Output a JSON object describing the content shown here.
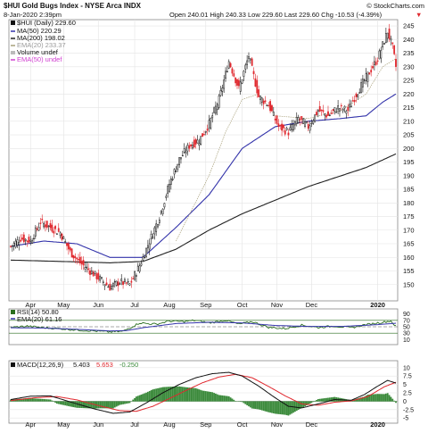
{
  "header": {
    "symbol_line": "$HUI Gold Bugs Index - NYSE Arca  INDX",
    "date_line": "8-Jan-2020 2:39pm",
    "ohlc_line": "Open 240.01  High 240.33  Low 229.60  Last 229.60  Chg -10.53 (-4.39%)",
    "chg_arrow": "▼",
    "watermark": "© StockCharts.com"
  },
  "legend": {
    "price": "$HUI (Daily) 229.60",
    "ma50": "MA(50) 220.29",
    "ma200": "MA(200) 198.02",
    "ema20": "EMA(20) 233.37",
    "volume": "Volume undef",
    "ema50": "EMA(50) undef"
  },
  "rsi_legend": {
    "rsi": "RSI(14) 50.80",
    "ema": "EMA(20) 61.16"
  },
  "macd_legend": {
    "label": "MACD(12,26,9)",
    "macd": "5.403",
    "signal": "5.653",
    "hist": "-0.250"
  },
  "colors": {
    "up": "#111111",
    "down": "#e0282e",
    "ma50": "#3333aa",
    "ma200": "#222222",
    "ema20": "#a8a07a",
    "ema50": "#d040d0",
    "rsi": "#2a6e1e",
    "rsi_fill": "#8cc77a",
    "macd": "#111111",
    "signal": "#e0282e",
    "hist": "#3b8a3b"
  },
  "chart_data": [
    {
      "type": "candlestick",
      "title": "$HUI Gold Bugs Index - NYSE Arca INDX",
      "x_tick_labels": [
        "Apr",
        "May",
        "Jun",
        "Jul",
        "Aug",
        "Sep",
        "Oct",
        "Nov",
        "Dec",
        "2020"
      ],
      "ylim": [
        145,
        246
      ],
      "y_ticks": [
        150,
        155,
        160,
        165,
        170,
        175,
        180,
        185,
        190,
        195,
        200,
        205,
        210,
        215,
        220,
        225,
        230,
        235,
        240,
        245
      ],
      "close_keypoints": [
        [
          0,
          164
        ],
        [
          6,
          167
        ],
        [
          12,
          166
        ],
        [
          18,
          173
        ],
        [
          24,
          171
        ],
        [
          30,
          169
        ],
        [
          36,
          162
        ],
        [
          42,
          158
        ],
        [
          48,
          155
        ],
        [
          54,
          152
        ],
        [
          60,
          149
        ],
        [
          66,
          151
        ],
        [
          72,
          150
        ],
        [
          78,
          157
        ],
        [
          84,
          166
        ],
        [
          90,
          175
        ],
        [
          96,
          187
        ],
        [
          102,
          196
        ],
        [
          108,
          201
        ],
        [
          114,
          203
        ],
        [
          120,
          209
        ],
        [
          126,
          218
        ],
        [
          132,
          232
        ],
        [
          138,
          222
        ],
        [
          144,
          234
        ],
        [
          150,
          219
        ],
        [
          156,
          216
        ],
        [
          162,
          208
        ],
        [
          168,
          206
        ],
        [
          174,
          211
        ],
        [
          180,
          208
        ],
        [
          186,
          214
        ],
        [
          192,
          212
        ],
        [
          198,
          215
        ],
        [
          204,
          214
        ],
        [
          210,
          221
        ],
        [
          216,
          227
        ],
        [
          222,
          233
        ],
        [
          228,
          243
        ],
        [
          231,
          237
        ],
        [
          233,
          230
        ]
      ],
      "ma50": [
        [
          0,
          164
        ],
        [
          20,
          166
        ],
        [
          40,
          165
        ],
        [
          60,
          160
        ],
        [
          80,
          160
        ],
        [
          100,
          171
        ],
        [
          120,
          183
        ],
        [
          140,
          200
        ],
        [
          160,
          208
        ],
        [
          180,
          210
        ],
        [
          200,
          211
        ],
        [
          215,
          212
        ],
        [
          225,
          217
        ],
        [
          233,
          220
        ]
      ],
      "ma200": [
        [
          0,
          159
        ],
        [
          30,
          158.5
        ],
        [
          60,
          158
        ],
        [
          80,
          158.5
        ],
        [
          100,
          163
        ],
        [
          120,
          170
        ],
        [
          140,
          176
        ],
        [
          160,
          181
        ],
        [
          180,
          186
        ],
        [
          200,
          190
        ],
        [
          215,
          193
        ],
        [
          233,
          198
        ]
      ],
      "ema20": [
        [
          100,
          166
        ],
        [
          110,
          178
        ],
        [
          120,
          190
        ],
        [
          130,
          206
        ],
        [
          140,
          218
        ],
        [
          150,
          220
        ],
        [
          160,
          212
        ],
        [
          180,
          211
        ],
        [
          200,
          214
        ],
        [
          215,
          220
        ],
        [
          225,
          230
        ],
        [
          233,
          233
        ]
      ]
    },
    {
      "type": "line",
      "title": "RSI(14)",
      "ylim": [
        0,
        100
      ],
      "y_ticks": [
        10,
        30,
        50,
        70,
        90
      ],
      "guides": [
        30,
        70
      ],
      "rsi_keypoints": [
        [
          0,
          48
        ],
        [
          10,
          52
        ],
        [
          20,
          47
        ],
        [
          30,
          44
        ],
        [
          40,
          40
        ],
        [
          50,
          37
        ],
        [
          60,
          34
        ],
        [
          68,
          36
        ],
        [
          78,
          62
        ],
        [
          88,
          58
        ],
        [
          96,
          68
        ],
        [
          104,
          66
        ],
        [
          112,
          70
        ],
        [
          120,
          62
        ],
        [
          130,
          70
        ],
        [
          138,
          58
        ],
        [
          146,
          66
        ],
        [
          156,
          48
        ],
        [
          166,
          44
        ],
        [
          176,
          55
        ],
        [
          186,
          48
        ],
        [
          196,
          52
        ],
        [
          206,
          47
        ],
        [
          214,
          56
        ],
        [
          222,
          62
        ],
        [
          230,
          68
        ],
        [
          233,
          51
        ]
      ],
      "ema_keypoints": [
        [
          0,
          47
        ],
        [
          20,
          46
        ],
        [
          40,
          42
        ],
        [
          60,
          37
        ],
        [
          70,
          38
        ],
        [
          80,
          47
        ],
        [
          100,
          60
        ],
        [
          120,
          64
        ],
        [
          140,
          62
        ],
        [
          160,
          54
        ],
        [
          180,
          51
        ],
        [
          200,
          51
        ],
        [
          220,
          56
        ],
        [
          233,
          61
        ]
      ]
    },
    {
      "type": "line",
      "title": "MACD(12,26,9)",
      "ylim": [
        -6,
        11
      ],
      "y_ticks": [
        -5,
        -2.5,
        0,
        2.5,
        5,
        7.5,
        10
      ],
      "macd_keypoints": [
        [
          0,
          0.5
        ],
        [
          12,
          1.5
        ],
        [
          24,
          1.6
        ],
        [
          36,
          -0.2
        ],
        [
          50,
          -2.2
        ],
        [
          62,
          -3.6
        ],
        [
          72,
          -3.2
        ],
        [
          82,
          -0.5
        ],
        [
          92,
          2.5
        ],
        [
          102,
          5
        ],
        [
          112,
          7
        ],
        [
          122,
          8.2
        ],
        [
          132,
          8.6
        ],
        [
          140,
          7.5
        ],
        [
          150,
          4.5
        ],
        [
          160,
          1.0
        ],
        [
          168,
          -1.5
        ],
        [
          176,
          -2
        ],
        [
          186,
          -0.8
        ],
        [
          196,
          0.5
        ],
        [
          206,
          0.3
        ],
        [
          214,
          2
        ],
        [
          222,
          4.5
        ],
        [
          228,
          6.2
        ],
        [
          233,
          5.4
        ]
      ],
      "signal_keypoints": [
        [
          0,
          0.2
        ],
        [
          14,
          1.0
        ],
        [
          28,
          1.4
        ],
        [
          40,
          0.4
        ],
        [
          54,
          -1.4
        ],
        [
          66,
          -2.8
        ],
        [
          76,
          -3
        ],
        [
          86,
          -1.5
        ],
        [
          96,
          0.8
        ],
        [
          106,
          3.2
        ],
        [
          116,
          5.5
        ],
        [
          126,
          7.2
        ],
        [
          136,
          8
        ],
        [
          146,
          7
        ],
        [
          156,
          4.4
        ],
        [
          166,
          1.6
        ],
        [
          176,
          -0.8
        ],
        [
          186,
          -1.2
        ],
        [
          196,
          -0.3
        ],
        [
          206,
          0.1
        ],
        [
          216,
          1.4
        ],
        [
          226,
          4.3
        ],
        [
          233,
          5.65
        ]
      ]
    }
  ]
}
